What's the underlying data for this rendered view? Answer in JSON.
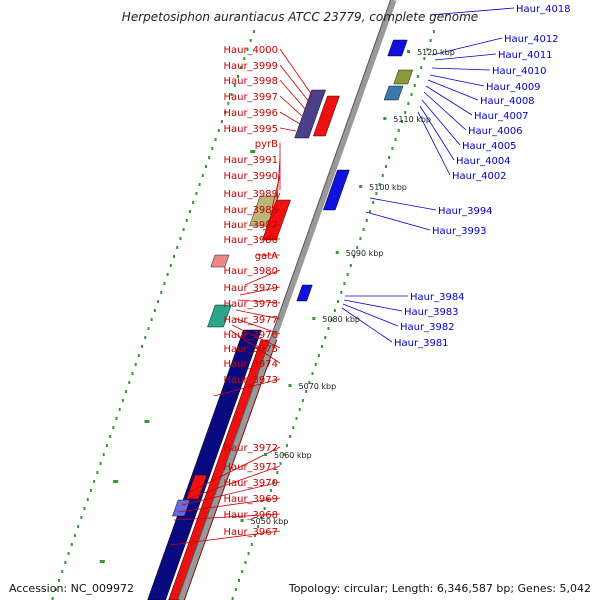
{
  "title": "Herpetosiphon aurantiacus ATCC 23779, complete genome",
  "footer": {
    "accession": "Accession: NC_009972",
    "summary": "Topology: circular; Length: 6,346,587 bp; Genes: 5,042"
  },
  "colors": {
    "left_labels": "#cc0000",
    "right_labels": "#0000cc",
    "backbone": "#999999",
    "forward_genes": "#ee1111",
    "reverse_genes": "#1111dd",
    "track_ticks": "#339933"
  },
  "kbp_marks": [
    "5050 kbp",
    "5060 kbp",
    "5070 kbp",
    "5080 kbp",
    "5090 kbp",
    "5100 kbp",
    "5110 kbp",
    "5120 kbp"
  ],
  "left_genes": [
    "Haur_4000",
    "Haur_3999",
    "Haur_3998",
    "Haur_3997",
    "Haur_3996",
    "Haur_3995",
    "pyrB",
    "Haur_3991",
    "Haur_3990",
    "Haur_3989",
    "Haur_3988",
    "Haur_3987",
    "Haur_3986",
    "gatA",
    "Haur_3980",
    "Haur_3979",
    "Haur_3978",
    "Haur_3977",
    "Haur_3976",
    "Haur_3975",
    "Haur_3974",
    "Haur_3973",
    "Haur_3972",
    "Haur_3971",
    "Haur_3970",
    "Haur_3969",
    "Haur_3968",
    "Haur_3967"
  ],
  "right_genes": [
    "Haur_4018",
    "Haur_4012",
    "Haur_4011",
    "Haur_4010",
    "Haur_4009",
    "Haur_4008",
    "Haur_4007",
    "Haur_4006",
    "Haur_4005",
    "Haur_4004",
    "Haur_4002",
    "Haur_3994",
    "Haur_3993",
    "Haur_3984",
    "Haur_3983",
    "Haur_3982",
    "Haur_3981"
  ]
}
